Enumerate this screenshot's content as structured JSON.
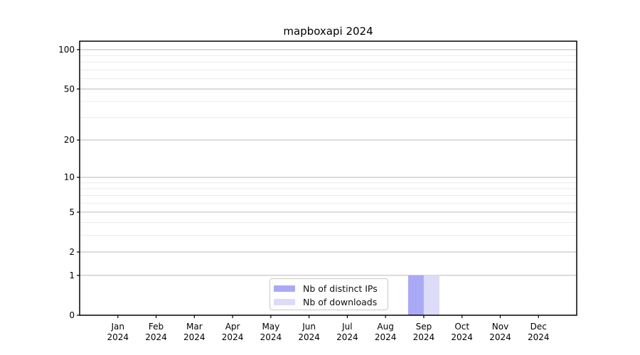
{
  "figure": {
    "background": "#ffffff"
  },
  "chart_data": {
    "type": "bar",
    "title": "mapboxapi 2024",
    "categories": [
      "Jan",
      "Feb",
      "Mar",
      "Apr",
      "May",
      "Jun",
      "Jul",
      "Aug",
      "Sep",
      "Oct",
      "Nov",
      "Dec"
    ],
    "tick_year": "2024",
    "series": [
      {
        "name": "Nb of distinct IPs",
        "color": "#a9a9f5",
        "values": [
          0,
          0,
          0,
          0,
          0,
          0,
          0,
          0,
          1,
          0,
          0,
          0
        ]
      },
      {
        "name": "Nb of downloads",
        "color": "#dcdcf9",
        "values": [
          0,
          0,
          0,
          0,
          0,
          0,
          0,
          0,
          1,
          0,
          0,
          0
        ]
      }
    ],
    "xlabel": "",
    "ylabel": "",
    "yscale": "log1p",
    "ylim": [
      0,
      116
    ],
    "yticks": [
      0,
      1,
      2,
      5,
      10,
      20,
      50,
      100
    ],
    "yticks_minor": [
      3,
      4,
      6,
      7,
      8,
      9,
      30,
      40,
      60,
      70,
      80,
      90
    ],
    "grid": "on",
    "legend_position": "lower center",
    "colors": {
      "axis": "#000000",
      "major_grid": "#c0c0c0",
      "minor_grid": "#ebebeb",
      "text": "#000000"
    }
  }
}
